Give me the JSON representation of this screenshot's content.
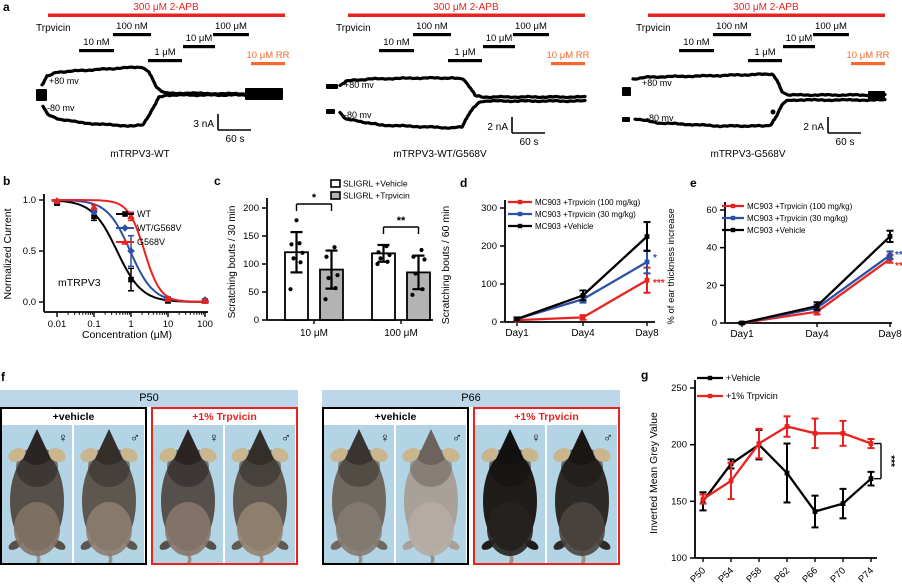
{
  "colors": {
    "red": "#e8231f",
    "orange": "#f4692e",
    "blue": "#2d50a7",
    "black": "#000000",
    "gray_bar": "#b3b3b3",
    "band_blue": "#bdd7ea",
    "photo_bg": "#b2d4e4"
  },
  "panel_labels": {
    "a": "a",
    "b": "b",
    "c": "c",
    "d": "d",
    "e": "e",
    "f": "f",
    "g": "g"
  },
  "panel_a": {
    "apb_label": "300 μM 2-APB",
    "drug_label": "Trpvicin",
    "concentration_labels": [
      "10 nM",
      "100 nM",
      "1 μM",
      "10 μM",
      "100 μM"
    ],
    "rr_label": "10 μM RR",
    "voltage_labels": [
      "+80 mv",
      "-80 mv"
    ],
    "traces": [
      {
        "name": "mTRPV3-WT",
        "scale_current": "3 nA",
        "scale_time": "60 s"
      },
      {
        "name": "mTRPV3-WT/G568V",
        "scale_current": "2 nA",
        "scale_time": "60 s"
      },
      {
        "name": "mTRPV3-G568V",
        "scale_current": "2 nA",
        "scale_time": "60 s"
      }
    ]
  },
  "chart_data": [
    {
      "id": "b",
      "type": "line",
      "subtype": "dose-response",
      "title": "mTRPV3",
      "xlabel": "Concentration (μM)",
      "ylabel": "Normalized Current",
      "xscale": "log",
      "xticks": [
        0.01,
        0.1,
        1,
        10,
        100
      ],
      "xtick_labels": [
        "0.01",
        "0.1",
        "1",
        "10",
        "100"
      ],
      "yticks": [
        0,
        0.5,
        1
      ],
      "ytick_labels": [
        "0.0",
        "0.5",
        "1.0"
      ],
      "ylim": [
        0,
        1.05
      ],
      "legend_position": "top-right",
      "series": [
        {
          "name": "WT",
          "color": "#000000",
          "marker": "square",
          "x": [
            0.01,
            0.1,
            1,
            10,
            100
          ],
          "y": [
            0.97,
            0.84,
            0.22,
            0.01,
            0.01
          ],
          "err": [
            0.02,
            0.04,
            0.11,
            0.01,
            0.01
          ],
          "fit_ic50": 0.42,
          "fit_hill": 1.3
        },
        {
          "name": "WT/G568V",
          "color": "#2d50a7",
          "marker": "diamond",
          "x": [
            0.01,
            0.1,
            1,
            10,
            100
          ],
          "y": [
            0.99,
            0.89,
            0.5,
            0.03,
            0.02
          ],
          "err": [
            0.01,
            0.03,
            0.15,
            0.02,
            0.01
          ],
          "fit_ic50": 0.95,
          "fit_hill": 1.4
        },
        {
          "name": "G568V",
          "color": "#e8231f",
          "marker": "triangle",
          "x": [
            0.01,
            0.1,
            1,
            10,
            100
          ],
          "y": [
            0.99,
            0.93,
            0.84,
            0.03,
            0.01
          ],
          "err": [
            0.01,
            0.02,
            0.04,
            0.01,
            0.01
          ],
          "fit_ic50": 2.3,
          "fit_hill": 2.0
        }
      ]
    },
    {
      "id": "c",
      "type": "bar",
      "ylabel": "Scratching bouts / 30 min",
      "categories": [
        "10 μM",
        "100 μM"
      ],
      "yticks": [
        0,
        50,
        100,
        150,
        200
      ],
      "ylim": [
        0,
        215
      ],
      "series": [
        {
          "name": "SLIGRL +Vehicle",
          "fill": "#ffffff",
          "values": [
            121,
            119
          ],
          "err": [
            36,
            15
          ],
          "points": [
            [
              55,
              103,
              110,
              120,
              135,
              137,
              178
            ],
            [
              100,
              104,
              110,
              116,
              121,
              132
            ]
          ]
        },
        {
          "name": "SLIGRL +Trpvicin",
          "fill": "#b3b3b3",
          "values": [
            90,
            85
          ],
          "err": [
            34,
            30
          ],
          "points": [
            [
              37,
              57,
              75,
              80,
              113,
              130
            ],
            [
              45,
              55,
              83,
              108,
              113,
              125
            ]
          ]
        }
      ],
      "significance": [
        {
          "category": "10 μM",
          "label": "*"
        },
        {
          "category": "100 μM",
          "label": "**"
        }
      ]
    },
    {
      "id": "d",
      "type": "line",
      "ylabel": "Scratching bouts / 60 min",
      "categories": [
        "Day1",
        "Day4",
        "Day8"
      ],
      "yticks": [
        0,
        100,
        200,
        300
      ],
      "ylim": [
        0,
        300
      ],
      "legend_position": "top-left",
      "series": [
        {
          "name": "MC903 +Trpvicin (100 mg/kg)",
          "color": "#e8231f",
          "values": [
            5,
            12,
            110
          ],
          "err": [
            3,
            6,
            33
          ],
          "sig": "***"
        },
        {
          "name": "MC903 +Trpvicin (30 mg/kg)",
          "color": "#2d50a7",
          "values": [
            8,
            60,
            158
          ],
          "err": [
            4,
            9,
            30
          ],
          "sig": "*"
        },
        {
          "name": "MC903 +Vehicle",
          "color": "#000000",
          "values": [
            8,
            70,
            225
          ],
          "err": [
            4,
            13,
            38
          ],
          "sig": ""
        }
      ]
    },
    {
      "id": "e",
      "type": "line",
      "ylabel": "% of ear thickness increase",
      "categories": [
        "Day1",
        "Day4",
        "Day8"
      ],
      "yticks": [
        0,
        20,
        40,
        60
      ],
      "ylim": [
        0,
        60
      ],
      "legend_position": "top-left",
      "series": [
        {
          "name": "MC903 +Trpvicin (100 mg/kg)",
          "color": "#e8231f",
          "values": [
            0,
            6,
            34
          ],
          "err": [
            0.5,
            1.5,
            2
          ],
          "sig": "***"
        },
        {
          "name": "MC903 +Trpvicin (30 mg/kg)",
          "color": "#2d50a7",
          "values": [
            0,
            8,
            36
          ],
          "err": [
            0.5,
            1.5,
            2
          ],
          "sig": "***"
        },
        {
          "name": "MC903 +Vehicle",
          "color": "#000000",
          "values": [
            0,
            9,
            46
          ],
          "err": [
            0.5,
            2,
            3
          ],
          "sig": ""
        }
      ]
    },
    {
      "id": "g",
      "type": "line",
      "ylabel": "Inverted Mean Grey Value",
      "categories": [
        "P50",
        "P54",
        "P58",
        "P62",
        "P66",
        "P70",
        "P74"
      ],
      "yticks": [
        100,
        150,
        200,
        250
      ],
      "ylim": [
        100,
        250
      ],
      "xtick_rotation": -45,
      "legend_position": "top-left",
      "series": [
        {
          "name": "+Vehicle",
          "color": "#000000",
          "values": [
            150,
            183,
            200,
            175,
            141,
            148,
            170
          ],
          "err": [
            8,
            4,
            13,
            26,
            14,
            13,
            6
          ],
          "sig": ""
        },
        {
          "name": "+1% Trpvicin",
          "color": "#e8231f",
          "values": [
            152,
            168,
            201,
            216,
            210,
            210,
            201
          ],
          "err": [
            4,
            16,
            13,
            9,
            13,
            11,
            4
          ],
          "sig": ""
        }
      ],
      "significance_bracket": {
        "label": "***",
        "between": [
          "+1% Trpvicin",
          "+Vehicle"
        ]
      }
    }
  ],
  "panel_f": {
    "groups": [
      {
        "title": "P50",
        "subpanels": [
          {
            "label": "+vehicle",
            "label_color": "#000000",
            "border": "#000000",
            "mice": [
              {
                "sex": "♀",
                "body": "#56504b",
                "head": "#2a2522",
                "rump": "#837266"
              },
              {
                "sex": "♂",
                "body": "#5d5750",
                "head": "#332e2a",
                "rump": "#8d7d70"
              }
            ]
          },
          {
            "label": "+1% Trpvicin",
            "label_color": "#e8231f",
            "border": "#e8231f",
            "mice": [
              {
                "sex": "♀",
                "body": "#55504c",
                "head": "#2a2522",
                "rump": "#87766b"
              },
              {
                "sex": "♂",
                "body": "#615a53",
                "head": "#332e2a",
                "rump": "#93836f"
              }
            ]
          }
        ]
      },
      {
        "title": "P66",
        "subpanels": [
          {
            "label": "+vehicle",
            "label_color": "#000000",
            "border": "#000000",
            "mice": [
              {
                "sex": "♀",
                "body": "#6f6861",
                "head": "#3a3430",
                "rump": "#837a70"
              },
              {
                "sex": "♂",
                "body": "#a8a19a",
                "head": "#6b635c",
                "rump": "#b5aca3"
              }
            ]
          },
          {
            "label": "+1% Trpvicin",
            "label_color": "#e8231f",
            "border": "#e8231f",
            "mice": [
              {
                "sex": "♀",
                "body": "#1f1c1a",
                "head": "#121110",
                "rump": "#262220"
              },
              {
                "sex": "♂",
                "body": "#2e2a27",
                "head": "#191614",
                "rump": "#4c453f"
              }
            ]
          }
        ]
      }
    ]
  }
}
